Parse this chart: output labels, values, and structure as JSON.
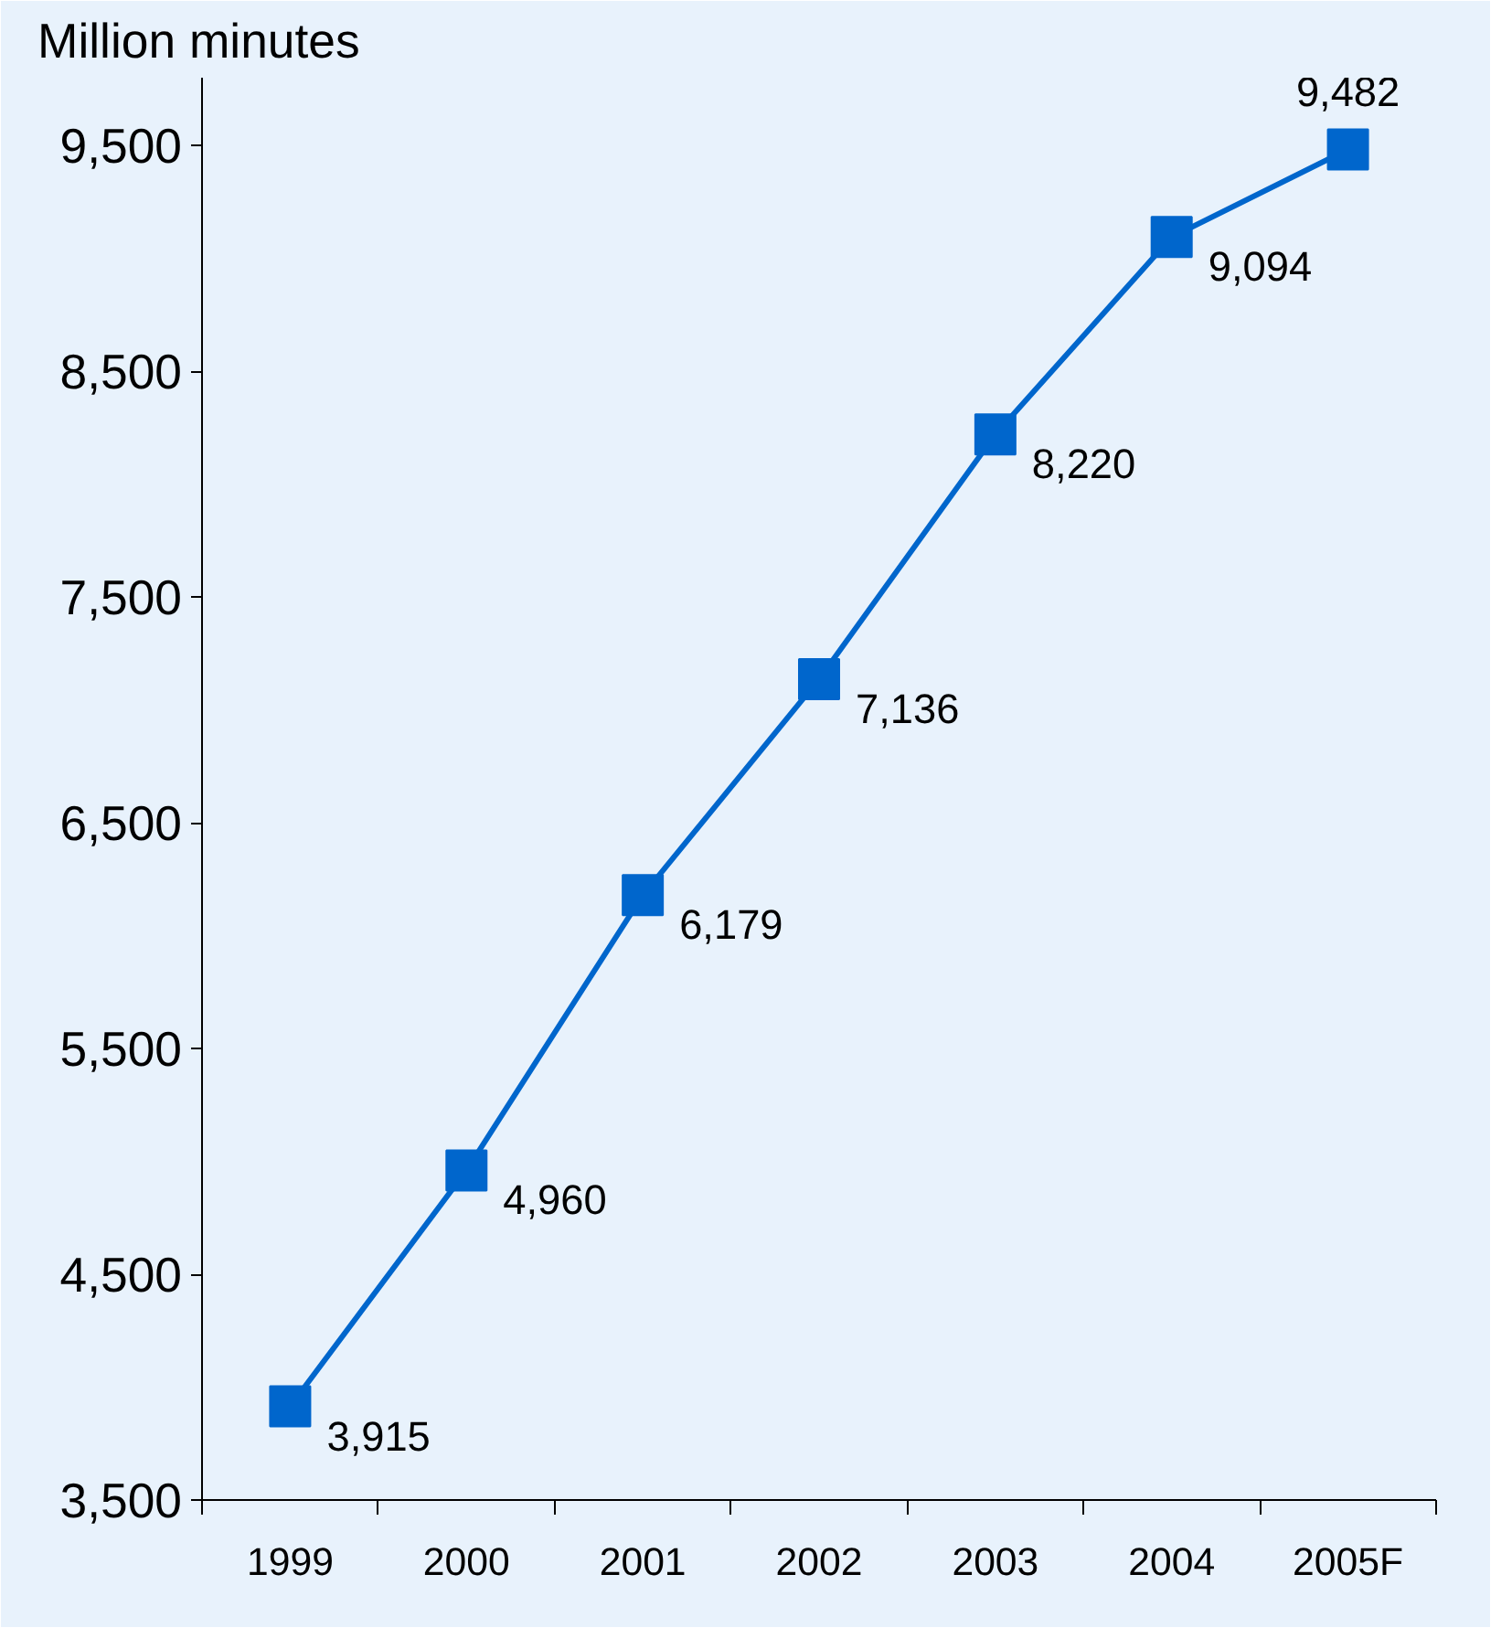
{
  "chart_data": {
    "type": "line",
    "ylabel": "Million minutes",
    "categories": [
      "1999",
      "2000",
      "2001",
      "2002",
      "2003",
      "2004",
      "2005F"
    ],
    "series": [
      {
        "color": "#0066cc",
        "values": [
          3915,
          4960,
          6179,
          7136,
          8220,
          9094,
          9482
        ]
      }
    ],
    "ylim": [
      3500,
      9800
    ],
    "yticks": [
      {
        "value": 3500,
        "label": "3,500"
      },
      {
        "value": 4500,
        "label": "4,500"
      },
      {
        "value": 5500,
        "label": "5,500"
      },
      {
        "value": 6500,
        "label": "6,500"
      },
      {
        "value": 7500,
        "label": "7,500"
      },
      {
        "value": 8500,
        "label": "8,500"
      },
      {
        "value": 9500,
        "label": "9,500"
      }
    ],
    "value_labels": [
      "3,915",
      "4,960",
      "6,179",
      "7,136",
      "8,220",
      "9,094",
      "9,482"
    ],
    "marker": "square",
    "line_style": "solid"
  }
}
